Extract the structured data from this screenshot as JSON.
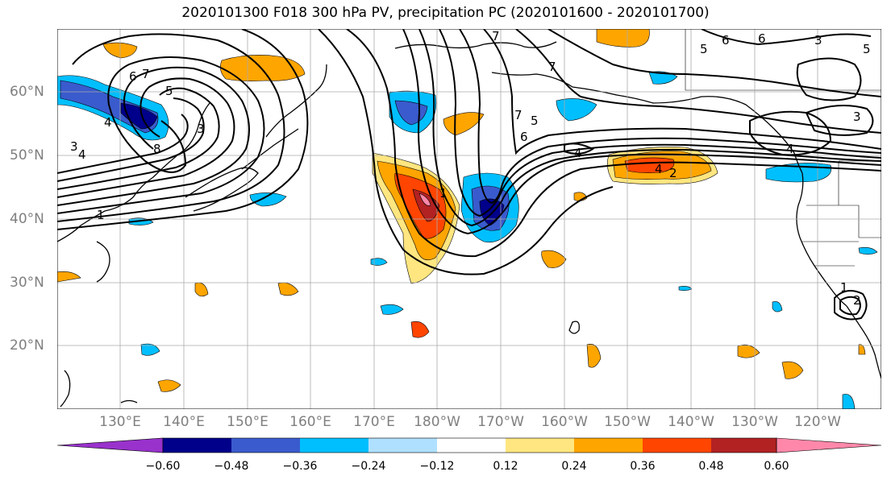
{
  "title": "2020101300 F018 300 hPa PV, precipitation PC (2020101600 - 2020101700)",
  "lat_labels": [
    "60°N",
    "50°N",
    "40°N",
    "30°N",
    "20°N"
  ],
  "lon_labels": [
    "130°E",
    "140°E",
    "150°E",
    "160°E",
    "170°E",
    "180°W",
    "170°W",
    "160°W",
    "150°W",
    "140°W",
    "130°W",
    "120°W"
  ],
  "colorbar": {
    "ticks": [
      "−0.60",
      "−0.48",
      "−0.36",
      "−0.24",
      "−0.12",
      "0.12",
      "0.24",
      "0.36",
      "0.48",
      "0.60"
    ],
    "colors": [
      "#9932cc",
      "#00008b",
      "#3a5bcd",
      "#00bfff",
      "#b0e0ff",
      "#ffffff",
      "#ffe680",
      "#ffa500",
      "#ff4500",
      "#b22222",
      "#ff88aa"
    ]
  },
  "contour_labels": [
    "6",
    "7",
    "5",
    "4",
    "3",
    "8",
    "4",
    "3",
    "1",
    "7",
    "6",
    "5",
    "4",
    "6",
    "3",
    "7",
    "7",
    "6",
    "5",
    "4",
    "2",
    "1",
    "1",
    "2",
    "3",
    "4",
    "5",
    "6",
    "8",
    "3",
    "6",
    "1"
  ]
}
